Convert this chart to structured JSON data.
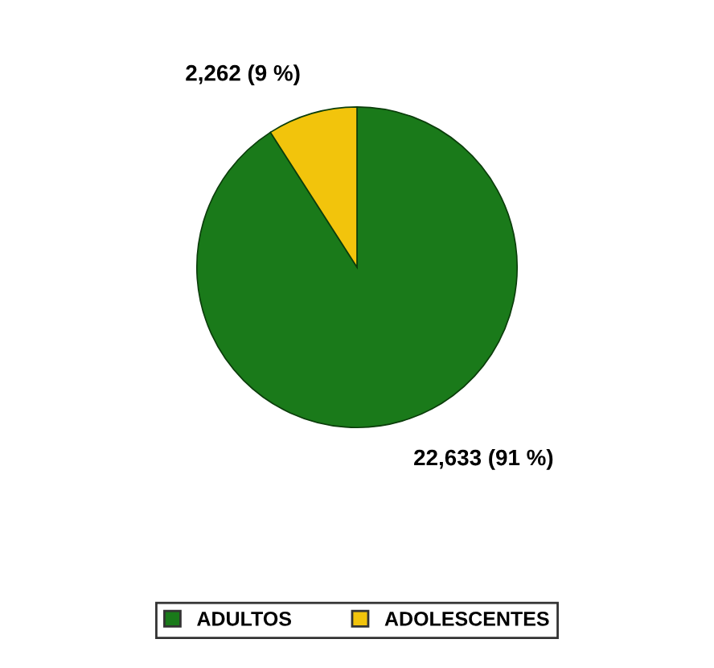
{
  "chart_data": {
    "type": "pie",
    "categories": [
      "ADULTOS",
      "ADOLESCENTES"
    ],
    "values": [
      22633,
      2262
    ],
    "colors": [
      "#1a7a1a",
      "#f2c40c"
    ],
    "value_labels": [
      "22,633 (91 %)",
      "2,262 (9 %)"
    ],
    "legend": "bottom"
  }
}
